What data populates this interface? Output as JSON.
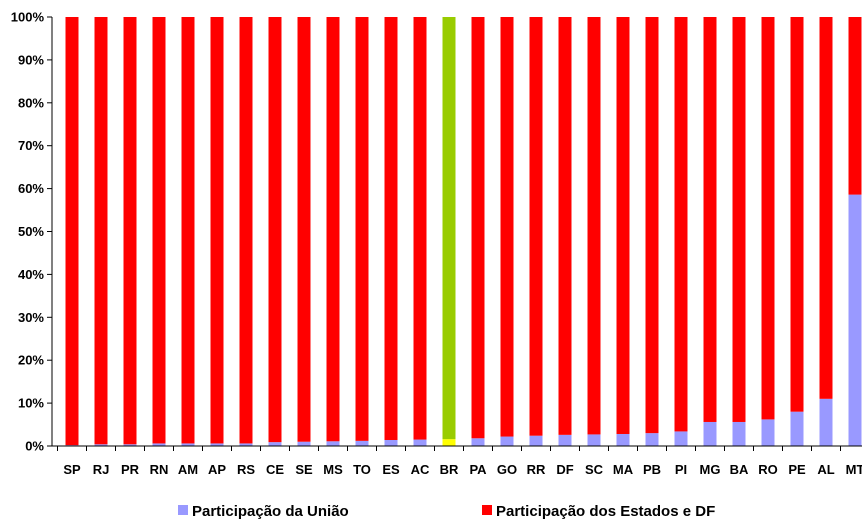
{
  "chart_data": {
    "type": "bar",
    "stacked": true,
    "percent": true,
    "categories": [
      "SP",
      "RJ",
      "PR",
      "RN",
      "AM",
      "AP",
      "RS",
      "CE",
      "SE",
      "MS",
      "TO",
      "ES",
      "AC",
      "BR",
      "PA",
      "GO",
      "RR",
      "DF",
      "SC",
      "MA",
      "PB",
      "PI",
      "MG",
      "BA",
      "RO",
      "PE",
      "AL",
      "MT"
    ],
    "series": [
      {
        "name": "Participação da União",
        "color": "#9999ff",
        "values": [
          0.2,
          0.4,
          0.4,
          0.6,
          0.6,
          0.6,
          0.6,
          0.9,
          1.0,
          1.1,
          1.2,
          1.4,
          1.5,
          1.6,
          1.8,
          2.2,
          2.4,
          2.6,
          2.7,
          2.8,
          3.0,
          3.4,
          5.6,
          5.6,
          6.2,
          8.0,
          11.0,
          58.6
        ]
      },
      {
        "name": "Participação dos Estados e DF",
        "color": "#ff0000",
        "values": [
          99.8,
          99.6,
          99.6,
          99.4,
          99.4,
          99.4,
          99.4,
          99.1,
          99.0,
          98.9,
          98.8,
          98.6,
          98.5,
          98.4,
          98.2,
          97.8,
          97.6,
          97.4,
          97.3,
          97.2,
          97.0,
          96.6,
          94.4,
          94.4,
          93.8,
          92.0,
          89.0,
          41.4
        ]
      }
    ],
    "highlight": {
      "category": "BR",
      "bottom_color": "#ffff00",
      "top_color": "#99cc00"
    },
    "yticks": [
      "0%",
      "10%",
      "20%",
      "30%",
      "40%",
      "50%",
      "60%",
      "70%",
      "80%",
      "90%",
      "100%"
    ],
    "ylim": [
      0,
      100
    ],
    "legend_position": "bottom"
  }
}
